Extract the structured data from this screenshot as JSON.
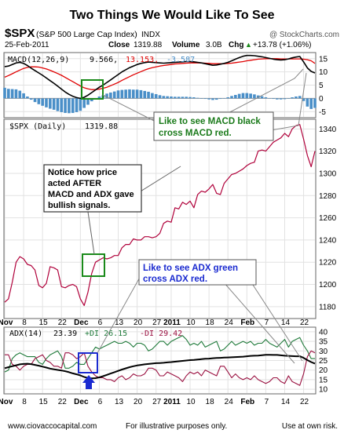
{
  "title": "Two Things We Would Like To See",
  "symbol": "$SPX",
  "symbol_name": "(S&P 500 Large Cap Index)",
  "exchange": "INDX",
  "watermark": "@ StockCharts.com",
  "date": "25-Feb-2011",
  "quote": {
    "close_label": "Close",
    "close_value": "1319.88",
    "volume_label": "Volume",
    "volume_value": "3.0B",
    "chg_label": "Chg",
    "chg_value": "+13.78 (+1.06%)",
    "chg_arrow": "▲"
  },
  "macd_legend": {
    "name": "MACD(12,26,9)",
    "macd": "9.566,",
    "signal": "13.153,",
    "hist": "-3.587"
  },
  "spx_legend": {
    "name": "$SPX (Daily)",
    "value": "1319.88"
  },
  "adx_legend": {
    "name": "ADX(14)",
    "adx": "23.39",
    "pdi": "+DI 26.15",
    "mdi": "-DI 29.42"
  },
  "annotations": {
    "macd_note": [
      "Like to see MACD black",
      "cross MACD red."
    ],
    "price_note": [
      "Notice how price",
      "acted AFTER",
      "MACD and ADX gave",
      "bullish signals."
    ],
    "adx_note": [
      "Like to see ADX green",
      "cross ADX red."
    ]
  },
  "footer": {
    "site": "www.ciovaccocapital.com",
    "disclaimer": "For illustrative purposes only.",
    "risk": "Use at own risk."
  },
  "colors": {
    "macd_line": "#000000",
    "signal_line": "#e00000",
    "histogram": "#4a8fc8",
    "price_line": "#b0003a",
    "adx_line": "#000000",
    "pdi_line": "#1f7a3a",
    "mdi_line": "#9a1040",
    "macd_note": "#1a7a1a",
    "adx_note": "#1a2ad0",
    "highlight_green": "#1a8a1a",
    "highlight_blue": "#1a2ad0"
  },
  "chart_data": {
    "type": "line",
    "x_tick_labels": [
      "Nov",
      "8",
      "15",
      "22",
      "Dec",
      "6",
      "13",
      "20",
      "27",
      "2011",
      "10",
      "18",
      "24",
      "Feb",
      "7",
      "14",
      "22"
    ],
    "x_tick_index": [
      0,
      5,
      10,
      15,
      20,
      25,
      30,
      35,
      40,
      44,
      49,
      54,
      59,
      64,
      69,
      74,
      79
    ],
    "bold_ticks": [
      "Nov",
      "Dec",
      "2011",
      "Feb"
    ],
    "macd_panel": {
      "yticks": [
        15,
        10,
        5,
        0,
        -5
      ],
      "ylim": [
        -7,
        17
      ],
      "macd": [
        12,
        12.2,
        12.8,
        13.4,
        13.6,
        13.2,
        12.4,
        11.4,
        10.5,
        9.6,
        8.7,
        7.7,
        6.7,
        5.7,
        4.6,
        3.5,
        2.4,
        1.5,
        0.8,
        0.3,
        0,
        0.4,
        1.2,
        2.2,
        3.2,
        4.2,
        5.0,
        6.0,
        7.0,
        8.0,
        9.0,
        10.0,
        10.8,
        11.6,
        12.2,
        12.8,
        13.2,
        13.5,
        13.7,
        13.6,
        13.5,
        13.4,
        13.3,
        13.4,
        13.5,
        13.6,
        13.7,
        13.8,
        13.9,
        13.9,
        13.8,
        13.6,
        13.4,
        13.1,
        12.8,
        12.5,
        12.6,
        12.9,
        13.2,
        13.6,
        14.2,
        14.8,
        15.4,
        15.9,
        16.2,
        16.2,
        16.1,
        15.9,
        15.7,
        15.4,
        15.1,
        14.8,
        14.6,
        14.5,
        14.6,
        14.9,
        15.3,
        15.6,
        15.8,
        13.8,
        11.5,
        10.2,
        9.6
      ],
      "signal": [
        8.0,
        8.6,
        9.3,
        10.0,
        10.7,
        11.3,
        11.7,
        11.9,
        11.9,
        11.8,
        11.5,
        11.1,
        10.6,
        10.0,
        9.4,
        8.7,
        7.9,
        7.1,
        6.3,
        5.5,
        4.7,
        4.0,
        3.6,
        3.3,
        3.3,
        3.5,
        3.8,
        4.2,
        4.8,
        5.4,
        6.0,
        6.8,
        7.5,
        8.2,
        8.9,
        9.5,
        10.1,
        10.7,
        11.2,
        11.6,
        11.9,
        12.2,
        12.4,
        12.6,
        12.8,
        13.0,
        13.1,
        13.2,
        13.3,
        13.4,
        13.4,
        13.4,
        13.4,
        13.3,
        13.2,
        13.1,
        13.1,
        13.1,
        13.1,
        13.2,
        13.3,
        13.5,
        13.7,
        13.9,
        14.2,
        14.4,
        14.6,
        14.8,
        14.9,
        15.0,
        15.0,
        15.0,
        15.0,
        14.9,
        14.9,
        14.9,
        14.9,
        14.9,
        14.9,
        14.8,
        14.6,
        14.2,
        13.2
      ]
    },
    "price_panel": {
      "yticks": [
        1340,
        1320,
        1300,
        1280,
        1260,
        1240,
        1220,
        1200,
        1180
      ],
      "ylim": [
        1170,
        1348
      ],
      "close": [
        1184,
        1187,
        1202,
        1220,
        1225,
        1223,
        1218,
        1217,
        1213,
        1199,
        1197,
        1201,
        1216,
        1215,
        1213,
        1198,
        1197,
        1199,
        1200,
        1198,
        1187,
        1181,
        1193,
        1210,
        1220,
        1222,
        1224,
        1223,
        1224,
        1226,
        1226,
        1233,
        1236,
        1236,
        1241,
        1240,
        1240,
        1243,
        1243,
        1242,
        1243,
        1246,
        1255,
        1257,
        1256,
        1269,
        1268,
        1274,
        1272,
        1275,
        1269,
        1281,
        1284,
        1283,
        1286,
        1290,
        1282,
        1281,
        1291,
        1295,
        1299,
        1300,
        1302,
        1304,
        1307,
        1309,
        1310,
        1320,
        1321,
        1320,
        1324,
        1328,
        1330,
        1332,
        1336,
        1333,
        1340,
        1343,
        1344,
        1331,
        1316,
        1306,
        1320
      ]
    },
    "adx_panel": {
      "yticks": [
        40,
        35,
        30,
        25,
        20,
        15,
        10
      ],
      "ylim": [
        8,
        42
      ],
      "adx": [
        21,
        21.5,
        22,
        22.5,
        23,
        23.2,
        23.3,
        23.1,
        22.7,
        22.3,
        21.8,
        21.3,
        20.8,
        20.4,
        20.1,
        19.8,
        19.4,
        18.9,
        18.3,
        17.8,
        17.2,
        16.4,
        15.9,
        15.7,
        15.8,
        16.2,
        16.8,
        17.5,
        18.2,
        18.9,
        19.6,
        20.3,
        20.9,
        21.5,
        22.0,
        22.4,
        22.7,
        23.0,
        23.2,
        23.4,
        23.6,
        23.7,
        23.8,
        24.0,
        24.2,
        24.4,
        24.6,
        24.8,
        25.0,
        25.2,
        25.3,
        25.5,
        25.7,
        25.9,
        26.0,
        26.2,
        26.3,
        26.4,
        26.5,
        26.6,
        26.7,
        26.8,
        26.9,
        27.0,
        27.2,
        27.4,
        27.5,
        27.6,
        27.8,
        28.0,
        28.0,
        27.9,
        27.9,
        27.7,
        27.5,
        27.4,
        27.3,
        27.2,
        27.2,
        26.4,
        25.2,
        24.2,
        23.4
      ],
      "plus_di": [
        19,
        20,
        26,
        28,
        29,
        28,
        27,
        27,
        27,
        24,
        23,
        26,
        28,
        29,
        30,
        27,
        21,
        21,
        22,
        24,
        23,
        23,
        26,
        29,
        32,
        31,
        32,
        33,
        34,
        35,
        34,
        34,
        35,
        34,
        32,
        34,
        34,
        33,
        30,
        31,
        33,
        35,
        35,
        33,
        35,
        36,
        37,
        38,
        36,
        33,
        34,
        33,
        35,
        32,
        33,
        34,
        35,
        30,
        31,
        33,
        35,
        33,
        34,
        35,
        34,
        35,
        33,
        34,
        34,
        36,
        34,
        33,
        32,
        34,
        36,
        32,
        35,
        36,
        37,
        33,
        30,
        26,
        26
      ],
      "minus_di": [
        28,
        28,
        23,
        22,
        20,
        22,
        23,
        23,
        26,
        27,
        28,
        25,
        24,
        22,
        22,
        21,
        29,
        29,
        28,
        26,
        27,
        29,
        22,
        19,
        17,
        16,
        16,
        15,
        15,
        14,
        16,
        17,
        15,
        16,
        18,
        17,
        17,
        18,
        21,
        21,
        20,
        17,
        17,
        19,
        18,
        17,
        16,
        14,
        17,
        19,
        18,
        19,
        17,
        20,
        19,
        18,
        17,
        22,
        22,
        19,
        16,
        18,
        16,
        15,
        16,
        15,
        17,
        15,
        14,
        13,
        14,
        16,
        16,
        14,
        13,
        17,
        14,
        13,
        12,
        18,
        27,
        30,
        29
      ]
    }
  }
}
